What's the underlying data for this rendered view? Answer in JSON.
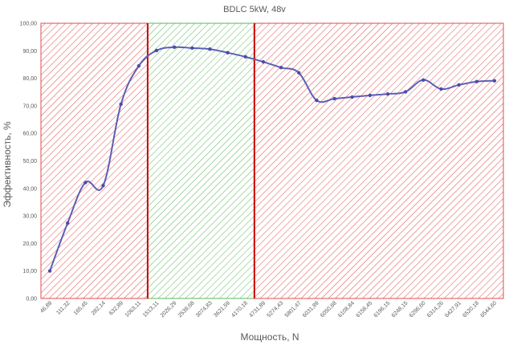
{
  "chart_data": {
    "type": "line",
    "title": "BDLC  5kW, 48v",
    "xlabel": "Мощность, N",
    "ylabel": "Эффективность, %",
    "categories": [
      "46,89",
      "111,32",
      "165,45",
      "282,14",
      "632,89",
      "1063,11",
      "1513,11",
      "2026,29",
      "2539,68",
      "3074,83",
      "3621,59",
      "4170,18",
      "4731,89",
      "5274,43",
      "5801,47",
      "6031,89",
      "6050,68",
      "6108,84",
      "6158,45",
      "6196,15",
      "6248,15",
      "6296,60",
      "6314,26",
      "6427,91",
      "6520,18",
      "6544,60"
    ],
    "series": [
      {
        "values": [
          10.0,
          27.4,
          42.1,
          41.0,
          70.6,
          84.5,
          90.1,
          91.3,
          91.0,
          90.6,
          89.3,
          87.8,
          86.0,
          83.9,
          82.0,
          72.0,
          72.6,
          73.2,
          73.8,
          74.3,
          75.1,
          79.4,
          76.1,
          77.6,
          78.8,
          79.1
        ]
      }
    ],
    "ylim": [
      0,
      100
    ],
    "yticks": [
      "0,00",
      "10,00",
      "20,00",
      "30,00",
      "40,00",
      "50,00",
      "60,00",
      "70,00",
      "80,00",
      "90,00",
      "100,00"
    ],
    "grid": false,
    "zones": [
      {
        "from": 0,
        "to": 5.5,
        "color": "#e24b4b"
      },
      {
        "from": 5.5,
        "to": 11.5,
        "color": "#5ab85a"
      },
      {
        "from": 11.5,
        "to": 25,
        "color": "#e24b4b"
      }
    ],
    "zone_line_color": "#cc0000",
    "line_color": "#5b5fb5",
    "marker_color": "#4a4ea8"
  }
}
